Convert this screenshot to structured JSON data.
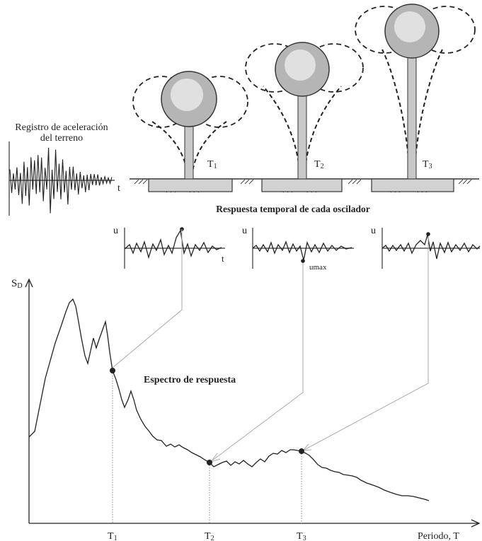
{
  "ground_record": {
    "title_line1": "Registro de aceleración",
    "title_line2": "del terreno",
    "time_label": "t"
  },
  "oscillators": [
    {
      "period_label": "T",
      "period_sub": "1"
    },
    {
      "period_label": "T",
      "period_sub": "2"
    },
    {
      "period_label": "T",
      "period_sub": "3"
    }
  ],
  "response_caption": "Respuesta temporal de cada oscilador",
  "response_plots": [
    {
      "u_label": "u",
      "t_label": "t",
      "max_label": ""
    },
    {
      "u_label": "u",
      "t_label": "",
      "max_label": "umax"
    },
    {
      "u_label": "u",
      "t_label": "",
      "max_label": ""
    }
  ],
  "spectrum": {
    "y_label_main": "S",
    "y_label_sub": "D",
    "x_label": "Periodo, T",
    "curve_label": "Espectro de respuesta",
    "tick_labels": [
      {
        "main": "T",
        "sub": "1"
      },
      {
        "main": "T",
        "sub": "2"
      },
      {
        "main": "T",
        "sub": "3"
      }
    ]
  }
}
